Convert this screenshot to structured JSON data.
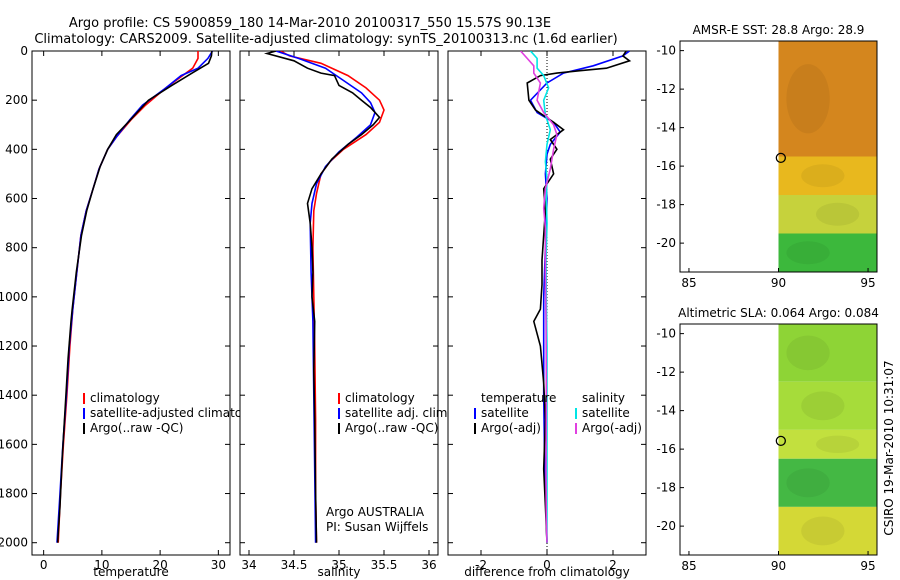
{
  "header": {
    "line1": "Argo profile: CS 5900859_180 14-Mar-2010 20100317_550 15.57S 90.13E",
    "line2": "Climatology: CARS2009. Satellite-adjusted climatology: synTS_20100313.nc (1.6d earlier)"
  },
  "footer": {
    "credit": "CSIRO 19-Mar-2010 10:31:07"
  },
  "colors": {
    "climatology": "#ff0000",
    "satellite": "#0000ff",
    "argo": "#000000",
    "satellite_salinity": "#00e5e5",
    "argo_salinity": "#e040e0"
  },
  "chart_data": [
    {
      "type": "line",
      "id": "temperature",
      "xlabel": "temperature",
      "xlim": [
        -2,
        32
      ],
      "ylim": [
        0,
        2050
      ],
      "y_inverted": true,
      "xticks": [
        0,
        10,
        20,
        30
      ],
      "yticks": [
        0,
        200,
        400,
        600,
        800,
        1000,
        1200,
        1400,
        1600,
        1800,
        2000
      ],
      "legend": [
        "climatology",
        "satellite-adjusted climatology",
        "Argo(..raw -QC)"
      ],
      "series": [
        {
          "name": "climatology",
          "color": "#ff0000",
          "points": [
            [
              26.5,
              0
            ],
            [
              26.5,
              30
            ],
            [
              25.6,
              70
            ],
            [
              21,
              150
            ],
            [
              17.5,
              220
            ],
            [
              15,
              280
            ],
            [
              12.5,
              350
            ],
            [
              11,
              400
            ],
            [
              9.5,
              480
            ],
            [
              8.5,
              560
            ],
            [
              7.3,
              650
            ],
            [
              6.4,
              750
            ],
            [
              5.7,
              900
            ],
            [
              5,
              1050
            ],
            [
              4.5,
              1200
            ],
            [
              4,
              1400
            ],
            [
              3.4,
              1600
            ],
            [
              2.9,
              1800
            ],
            [
              2.5,
              2000
            ]
          ]
        },
        {
          "name": "satellite-adjusted climatology",
          "color": "#0000ff",
          "points": [
            [
              29,
              0
            ],
            [
              28.2,
              30
            ],
            [
              26.5,
              70
            ],
            [
              23.6,
              100
            ],
            [
              21,
              150
            ],
            [
              17,
              220
            ],
            [
              14.8,
              280
            ],
            [
              12.5,
              350
            ],
            [
              11,
              400
            ],
            [
              9.5,
              480
            ],
            [
              8.5,
              560
            ],
            [
              7.3,
              650
            ],
            [
              6.4,
              750
            ],
            [
              5.7,
              900
            ],
            [
              5,
              1050
            ],
            [
              4.4,
              1200
            ],
            [
              3.9,
              1400
            ],
            [
              3.3,
              1600
            ],
            [
              2.8,
              1800
            ],
            [
              2.3,
              2000
            ]
          ]
        },
        {
          "name": "Argo(..raw -QC)",
          "color": "#000000",
          "points": [
            [
              28.9,
              0
            ],
            [
              28.8,
              20
            ],
            [
              28.3,
              50
            ],
            [
              25.5,
              90
            ],
            [
              22,
              140
            ],
            [
              18,
              200
            ],
            [
              14.5,
              290
            ],
            [
              12.5,
              340
            ],
            [
              11,
              400
            ],
            [
              9.7,
              470
            ],
            [
              8.5,
              560
            ],
            [
              7.4,
              650
            ],
            [
              6.5,
              750
            ],
            [
              5.6,
              900
            ],
            [
              4.9,
              1050
            ],
            [
              4.7,
              1100
            ],
            [
              4.2,
              1250
            ],
            [
              3.7,
              1450
            ],
            [
              3.2,
              1650
            ],
            [
              2.8,
              1850
            ],
            [
              2.4,
              2000
            ]
          ]
        }
      ]
    },
    {
      "type": "line",
      "id": "salinity",
      "xlabel": "salinity",
      "xlim": [
        33.9,
        36.1
      ],
      "ylim": [
        0,
        2050
      ],
      "y_inverted": true,
      "xticks": [
        34,
        34.5,
        35,
        35.5,
        36
      ],
      "xticklabels": [
        "34",
        "34.5",
        "35",
        "35.5",
        "36"
      ],
      "legend": [
        "climatology",
        "satellite adj. clim.",
        "Argo(..raw -QC)"
      ],
      "annotations": [
        "Argo AUSTRALIA",
        "PI: Susan Wijffels"
      ],
      "series": [
        {
          "name": "climatology",
          "color": "#ff0000",
          "points": [
            [
              34.35,
              0
            ],
            [
              34.45,
              20
            ],
            [
              34.8,
              50
            ],
            [
              35.1,
              100
            ],
            [
              35.3,
              150
            ],
            [
              35.45,
              200
            ],
            [
              35.5,
              240
            ],
            [
              35.45,
              290
            ],
            [
              35.3,
              340
            ],
            [
              35.05,
              400
            ],
            [
              34.9,
              450
            ],
            [
              34.8,
              500
            ],
            [
              34.75,
              580
            ],
            [
              34.72,
              650
            ],
            [
              34.71,
              800
            ],
            [
              34.72,
              1000
            ],
            [
              34.73,
              1200
            ],
            [
              34.74,
              1500
            ],
            [
              34.74,
              1800
            ],
            [
              34.75,
              2000
            ]
          ]
        },
        {
          "name": "satellite adj. clim.",
          "color": "#0000ff",
          "points": [
            [
              34.3,
              0
            ],
            [
              34.55,
              30
            ],
            [
              34.85,
              70
            ],
            [
              35.05,
              120
            ],
            [
              35.25,
              170
            ],
            [
              35.35,
              210
            ],
            [
              35.4,
              250
            ],
            [
              35.35,
              300
            ],
            [
              35.2,
              350
            ],
            [
              35.0,
              410
            ],
            [
              34.85,
              470
            ],
            [
              34.75,
              540
            ],
            [
              34.7,
              620
            ],
            [
              34.68,
              700
            ],
            [
              34.69,
              900
            ],
            [
              34.71,
              1100
            ],
            [
              34.72,
              1400
            ],
            [
              34.73,
              1700
            ],
            [
              34.74,
              2000
            ]
          ]
        },
        {
          "name": "Argo(..raw -QC)",
          "color": "#000000",
          "points": [
            [
              34.3,
              0
            ],
            [
              34.2,
              10
            ],
            [
              34.5,
              40
            ],
            [
              34.65,
              70
            ],
            [
              34.8,
              90
            ],
            [
              34.95,
              100
            ],
            [
              35.0,
              140
            ],
            [
              35.15,
              170
            ],
            [
              35.25,
              200
            ],
            [
              35.35,
              230
            ],
            [
              35.45,
              270
            ],
            [
              35.38,
              300
            ],
            [
              35.25,
              340
            ],
            [
              35.1,
              380
            ],
            [
              34.92,
              440
            ],
            [
              34.8,
              500
            ],
            [
              34.7,
              560
            ],
            [
              34.65,
              620
            ],
            [
              34.68,
              700
            ],
            [
              34.7,
              800
            ],
            [
              34.71,
              900
            ],
            [
              34.7,
              1000
            ],
            [
              34.73,
              1100
            ],
            [
              34.72,
              1300
            ],
            [
              34.73,
              1500
            ],
            [
              34.74,
              1800
            ],
            [
              34.75,
              2000
            ]
          ]
        }
      ]
    },
    {
      "type": "line",
      "id": "difference",
      "xlabel": "difference from climatology",
      "xlim": [
        -3,
        3
      ],
      "ylim": [
        0,
        2050
      ],
      "y_inverted": true,
      "xticks": [
        -2,
        0,
        2
      ],
      "zero_line": "dotted",
      "legend_left": {
        "title": "temperature",
        "items": [
          "satellite",
          "Argo(-adj)"
        ]
      },
      "legend_right": {
        "title": "salinity",
        "items": [
          "satellite",
          "Argo(-adj)"
        ]
      },
      "series": [
        {
          "name": "temperature satellite",
          "color": "#0000ff",
          "points": [
            [
              2.5,
              0
            ],
            [
              2.3,
              20
            ],
            [
              1.4,
              60
            ],
            [
              0.5,
              90
            ],
            [
              0,
              130
            ],
            [
              -0.5,
              200
            ],
            [
              -0.3,
              250
            ],
            [
              0.2,
              290
            ],
            [
              0.4,
              330
            ],
            [
              0.1,
              380
            ],
            [
              0,
              420
            ],
            [
              -0.05,
              500
            ],
            [
              0,
              600
            ],
            [
              -0.05,
              800
            ],
            [
              -0.1,
              1000
            ],
            [
              -0.1,
              1200
            ],
            [
              -0.1,
              1400
            ],
            [
              -0.08,
              1600
            ],
            [
              -0.05,
              1800
            ],
            [
              0,
              2000
            ]
          ]
        },
        {
          "name": "temperature Argo(-adj)",
          "color": "#000000",
          "points": [
            [
              2.4,
              0
            ],
            [
              2.3,
              20
            ],
            [
              2.5,
              40
            ],
            [
              1.8,
              70
            ],
            [
              1.0,
              80
            ],
            [
              0.3,
              90
            ],
            [
              -0.2,
              100
            ],
            [
              -0.6,
              130
            ],
            [
              -0.55,
              200
            ],
            [
              -0.35,
              240
            ],
            [
              0.2,
              290
            ],
            [
              0.5,
              320
            ],
            [
              0.1,
              360
            ],
            [
              0.3,
              400
            ],
            [
              0.1,
              440
            ],
            [
              0.2,
              500
            ],
            [
              -0.1,
              560
            ],
            [
              -0.05,
              650
            ],
            [
              -0.1,
              750
            ],
            [
              -0.15,
              850
            ],
            [
              -0.15,
              950
            ],
            [
              -0.2,
              1050
            ],
            [
              -0.4,
              1100
            ],
            [
              -0.2,
              1200
            ],
            [
              -0.1,
              1350
            ],
            [
              -0.05,
              1500
            ],
            [
              -0.1,
              1700
            ],
            [
              -0.05,
              1850
            ],
            [
              0,
              2000
            ]
          ]
        },
        {
          "name": "salinity satellite",
          "color": "#00e5e5",
          "points": [
            [
              -0.5,
              0
            ],
            [
              -0.3,
              30
            ],
            [
              -0.3,
              70
            ],
            [
              -0.1,
              100
            ],
            [
              0.05,
              150
            ],
            [
              -0.1,
              200
            ],
            [
              -0.05,
              260
            ],
            [
              0.1,
              320
            ],
            [
              0,
              380
            ],
            [
              -0.05,
              450
            ],
            [
              0,
              520
            ],
            [
              -0.02,
              600
            ],
            [
              0,
              700
            ],
            [
              -0.03,
              850
            ],
            [
              -0.02,
              1000
            ],
            [
              0,
              1200
            ],
            [
              0,
              1400
            ],
            [
              0,
              1600
            ],
            [
              0,
              1800
            ],
            [
              0,
              2000
            ]
          ]
        },
        {
          "name": "salinity Argo(-adj)",
          "color": "#e040e0",
          "points": [
            [
              -0.8,
              0
            ],
            [
              -0.6,
              30
            ],
            [
              -0.4,
              60
            ],
            [
              -0.4,
              90
            ],
            [
              -0.2,
              130
            ],
            [
              -0.3,
              200
            ],
            [
              -0.1,
              250
            ],
            [
              0.2,
              300
            ],
            [
              0.3,
              340
            ],
            [
              0.2,
              400
            ],
            [
              0.1,
              480
            ],
            [
              -0.05,
              560
            ],
            [
              -0.1,
              640
            ],
            [
              -0.05,
              720
            ],
            [
              -0.05,
              900
            ],
            [
              -0.03,
              1100
            ],
            [
              -0.02,
              1300
            ],
            [
              -0.02,
              1500
            ],
            [
              -0.03,
              1700
            ],
            [
              -0.02,
              1900
            ],
            [
              0,
              2000
            ]
          ]
        }
      ]
    },
    {
      "type": "heatmap",
      "id": "sst-map",
      "title": "AMSR-E SST: 28.8 Argo: 28.9",
      "xlim": [
        84.5,
        95.5
      ],
      "ylim": [
        -21.5,
        -9.5
      ],
      "xticks": [
        85,
        90,
        95
      ],
      "yticks": [
        -10,
        -12,
        -14,
        -16,
        -18,
        -20
      ],
      "data_lon_min": 90,
      "marker": {
        "lon": 90.13,
        "lat": -15.57
      },
      "bands": [
        {
          "lat_top": -9.5,
          "lat_bottom": -15.5,
          "color": "#d4861e"
        },
        {
          "lat_top": -15.5,
          "lat_bottom": -17.5,
          "color": "#e8b81e"
        },
        {
          "lat_top": -17.5,
          "lat_bottom": -19.5,
          "color": "#c6d23c"
        },
        {
          "lat_top": -19.5,
          "lat_bottom": -21.5,
          "color": "#3cb83c"
        }
      ]
    },
    {
      "type": "heatmap",
      "id": "sla-map",
      "title": "Altimetric SLA: 0.064 Argo: 0.084",
      "xlim": [
        84.5,
        95.5
      ],
      "ylim": [
        -21.5,
        -9.5
      ],
      "xticks": [
        85,
        90,
        95
      ],
      "yticks": [
        -10,
        -12,
        -14,
        -16,
        -18,
        -20
      ],
      "data_lon_min": 90,
      "marker": {
        "lon": 90.13,
        "lat": -15.57
      },
      "bands": [
        {
          "lat_top": -9.5,
          "lat_bottom": -12.5,
          "color": "#8ed436"
        },
        {
          "lat_top": -12.5,
          "lat_bottom": -15.0,
          "color": "#a6dc3a"
        },
        {
          "lat_top": -15.0,
          "lat_bottom": -16.5,
          "color": "#c2e03e"
        },
        {
          "lat_top": -16.5,
          "lat_bottom": -19.0,
          "color": "#44b844"
        },
        {
          "lat_top": -19.0,
          "lat_bottom": -21.5,
          "color": "#d4d836"
        }
      ]
    }
  ]
}
